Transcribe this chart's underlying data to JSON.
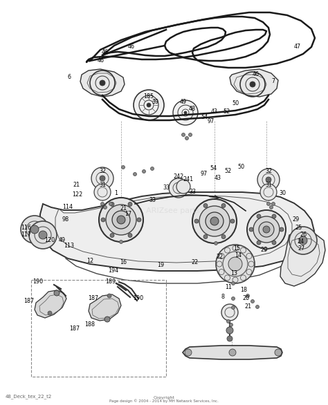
{
  "background_color": "#ffffff",
  "footer_left": "48_Deck_tex_22_t2",
  "footer_center_line1": "Copyright",
  "footer_center_line2": "Page design © 2004 - 2014 by MH Network Services, Inc.",
  "watermark": "ARIZsee parts",
  "line_color": "#2a2a2a",
  "label_color": "#000000",
  "label_fontsize": 5.8,
  "belt_lw": 2.2,
  "deck_fill": "#f5f5f5",
  "deck_edge": "#333333",
  "part_color": "#444444"
}
